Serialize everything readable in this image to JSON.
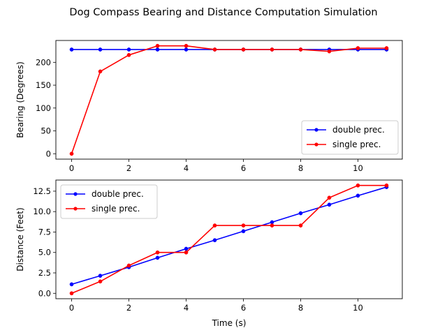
{
  "figure": {
    "suptitle": "Dog Compass Bearing and Distance Computation Simulation"
  },
  "chart_data": [
    {
      "type": "line",
      "title": "",
      "xlabel": "",
      "ylabel": "Bearing (Degrees)",
      "xlim": [
        -0.55,
        11.55
      ],
      "ylim": [
        -11.8,
        247.8
      ],
      "xticks": [
        0,
        2,
        4,
        6,
        8,
        10
      ],
      "yticks": [
        0,
        50,
        100,
        150,
        200
      ],
      "x": [
        0,
        1,
        2,
        3,
        4,
        5,
        6,
        7,
        8,
        9,
        10,
        11
      ],
      "legend_position": "lower-right",
      "grid": false,
      "series": [
        {
          "name": "double prec.",
          "color": "#0000ff",
          "values": [
            228,
            228,
            228,
            228,
            228,
            228,
            228,
            228,
            228,
            228,
            228,
            228
          ]
        },
        {
          "name": "single prec.",
          "color": "#ff0000",
          "values": [
            0,
            180,
            216,
            236,
            236,
            228,
            228,
            228,
            228,
            224,
            231,
            231
          ]
        }
      ]
    },
    {
      "type": "line",
      "title": "",
      "xlabel": "Time (s)",
      "ylabel": "Distance (Feet)",
      "xlim": [
        -0.55,
        11.55
      ],
      "ylim": [
        -0.66,
        13.86
      ],
      "xticks": [
        0,
        2,
        4,
        6,
        8,
        10
      ],
      "yticks": [
        0.0,
        2.5,
        5.0,
        7.5,
        10.0,
        12.5
      ],
      "ytick_labels": [
        "0.0",
        "2.5",
        "5.0",
        "7.5",
        "10.0",
        "12.5"
      ],
      "x": [
        0,
        1,
        2,
        3,
        4,
        5,
        6,
        7,
        8,
        9,
        10,
        11
      ],
      "legend_position": "upper-left",
      "grid": false,
      "series": [
        {
          "name": "double prec.",
          "color": "#0000ff",
          "values": [
            1.1,
            2.15,
            3.2,
            4.35,
            5.45,
            6.5,
            7.6,
            8.7,
            9.8,
            10.85,
            11.95,
            13.0
          ]
        },
        {
          "name": "single prec.",
          "color": "#ff0000",
          "values": [
            0.0,
            1.45,
            3.4,
            5.0,
            5.0,
            8.3,
            8.3,
            8.3,
            8.3,
            11.7,
            13.2,
            13.2
          ]
        }
      ]
    }
  ]
}
